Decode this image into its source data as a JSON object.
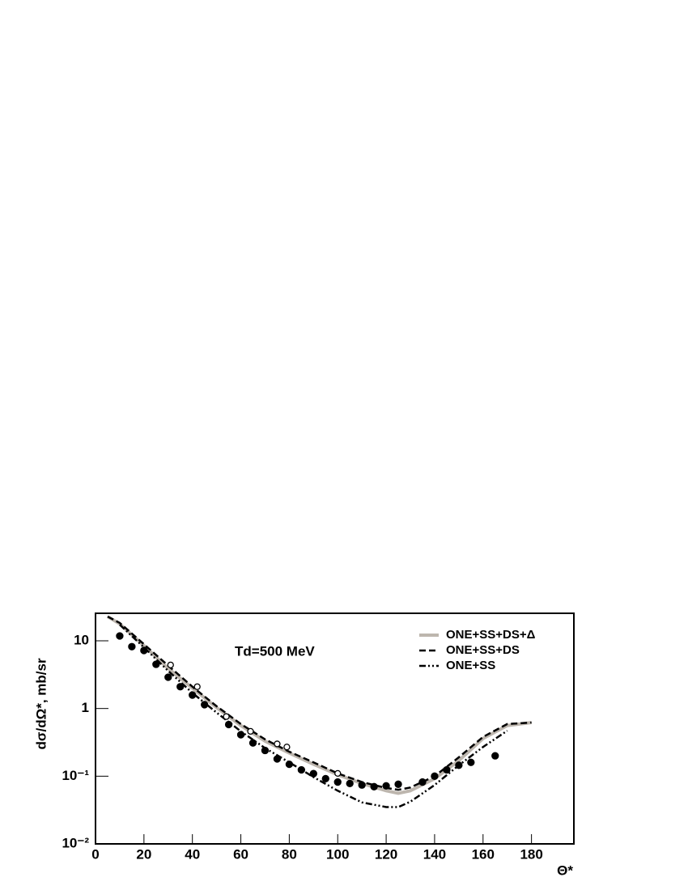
{
  "chart_data": {
    "type": "line",
    "annotation": "Td=500 MeV",
    "x_label": "Θ*",
    "y_label": "dσ/dΩ*, mb/sr",
    "log_y": true,
    "legend": "upper right",
    "xlim": [
      0,
      197.5
    ],
    "xticks": [
      0,
      20,
      40,
      60,
      80,
      100,
      120,
      140,
      160,
      180
    ],
    "ylim": [
      0.01,
      25.5
    ],
    "yticks": [
      {
        "value": 0.01,
        "label": "10⁻²"
      },
      {
        "value": 0.1,
        "label": "10⁻¹"
      },
      1,
      10
    ],
    "lines": [
      {
        "name": "ONE+SS+DS+Δ",
        "color": "#bdb6ae",
        "dash": "solid",
        "x": [
          5,
          10,
          20,
          30,
          40,
          50,
          60,
          70,
          80,
          90,
          100,
          110,
          120,
          125,
          130,
          140,
          150,
          160,
          170,
          180
        ],
        "values": [
          22.8,
          17.8,
          8.5,
          3.9,
          2.0,
          1.03,
          0.56,
          0.33,
          0.22,
          0.15,
          0.105,
          0.078,
          0.061,
          0.056,
          0.061,
          0.092,
          0.17,
          0.36,
          0.56,
          0.62
        ]
      },
      {
        "name": "ONE+SS+DS",
        "color": "#000000",
        "dash": "dashed",
        "x": [
          5,
          10,
          20,
          30,
          40,
          50,
          60,
          70,
          80,
          90,
          100,
          110,
          120,
          125,
          130,
          140,
          150,
          160,
          170,
          180
        ],
        "values": [
          22.8,
          18.4,
          8.9,
          4.3,
          2.1,
          1.08,
          0.59,
          0.35,
          0.23,
          0.16,
          0.11,
          0.082,
          0.067,
          0.063,
          0.068,
          0.1,
          0.19,
          0.38,
          0.59,
          0.62
        ]
      },
      {
        "name": "ONE+SS",
        "color": "#000000",
        "dash": "dashdotdot",
        "x": [
          10,
          20,
          30,
          40,
          50,
          60,
          70,
          80,
          90,
          100,
          110,
          120,
          125,
          130,
          140,
          150,
          160,
          170
        ],
        "values": [
          17.3,
          8.0,
          3.6,
          1.7,
          0.87,
          0.46,
          0.26,
          0.16,
          0.097,
          0.061,
          0.041,
          0.035,
          0.035,
          0.042,
          0.074,
          0.145,
          0.27,
          0.47
        ]
      }
    ],
    "markers": [
      {
        "filled": true,
        "color": "#000000",
        "x": [
          10,
          15,
          20,
          25,
          30,
          35,
          40,
          45,
          55,
          60,
          65,
          70,
          75,
          80,
          85,
          90,
          95,
          100,
          105,
          110,
          115,
          120,
          125,
          135,
          140,
          145,
          150,
          155,
          165
        ],
        "values": [
          11.8,
          8.2,
          7.2,
          4.5,
          2.9,
          2.1,
          1.58,
          1.14,
          0.58,
          0.41,
          0.31,
          0.24,
          0.18,
          0.15,
          0.124,
          0.109,
          0.092,
          0.082,
          0.078,
          0.074,
          0.07,
          0.072,
          0.076,
          0.082,
          0.1,
          0.124,
          0.145,
          0.16,
          0.2
        ]
      },
      {
        "filled": false,
        "color": "#000000",
        "x": [
          31,
          42,
          54,
          64,
          75,
          79,
          100
        ],
        "values": [
          4.4,
          2.1,
          0.76,
          0.46,
          0.3,
          0.27,
          0.11
        ]
      }
    ]
  }
}
